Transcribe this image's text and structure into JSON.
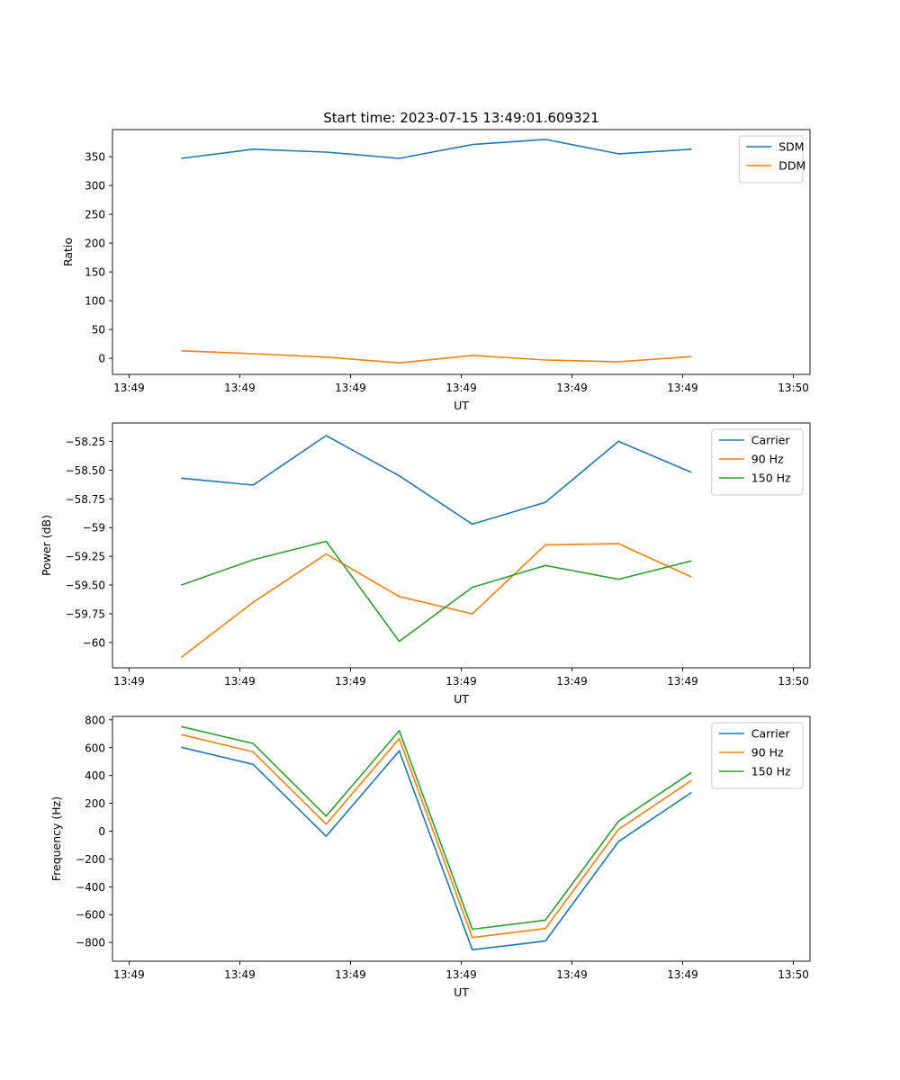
{
  "title": "Start time: 2023-07-15 13:49:01.609321",
  "colors": {
    "c0": "#1f77b4",
    "c1": "#ff7f0e",
    "c2": "#2ca02c"
  },
  "chart_data": [
    {
      "type": "line",
      "title": "Start time: 2023-07-15 13:49:01.609321",
      "xlabel": "UT",
      "ylabel": "Ratio",
      "x_tick_labels": [
        "13:49",
        "13:49",
        "13:49",
        "13:49",
        "13:49",
        "13:49",
        "13:50"
      ],
      "x_range": [
        0,
        6
      ],
      "x": [
        0.47,
        1.12,
        1.78,
        2.44,
        3.1,
        3.76,
        4.42,
        5.08
      ],
      "ylim": [
        -28,
        397
      ],
      "y_ticks": [
        0,
        50,
        100,
        150,
        200,
        250,
        300,
        350
      ],
      "legend": "top-right",
      "series": [
        {
          "name": "SDM",
          "color": "#1f77b4",
          "values": [
            347,
            363,
            358,
            347,
            371,
            380,
            355,
            363
          ]
        },
        {
          "name": "DDM",
          "color": "#ff7f0e",
          "values": [
            13,
            8,
            2,
            -8,
            5,
            -3,
            -6,
            3
          ]
        }
      ]
    },
    {
      "type": "line",
      "xlabel": "UT",
      "ylabel": "Power (dB)",
      "x_tick_labels": [
        "13:49",
        "13:49",
        "13:49",
        "13:49",
        "13:49",
        "13:49",
        "13:50"
      ],
      "x_range": [
        0,
        6
      ],
      "x": [
        0.47,
        1.12,
        1.78,
        2.44,
        3.1,
        3.76,
        4.42,
        5.08
      ],
      "ylim": [
        -60.22,
        -58.09
      ],
      "y_ticks": [
        -60.0,
        -59.75,
        -59.5,
        -59.25,
        -59.0,
        -58.75,
        -58.5,
        -58.25
      ],
      "legend": "top-right",
      "series": [
        {
          "name": "Carrier",
          "color": "#1f77b4",
          "values": [
            -58.57,
            -58.63,
            -58.2,
            -58.55,
            -58.97,
            -58.78,
            -58.25,
            -58.52
          ]
        },
        {
          "name": "90 Hz",
          "color": "#ff7f0e",
          "values": [
            -60.13,
            -59.65,
            -59.23,
            -59.6,
            -59.75,
            -59.15,
            -59.14,
            -59.43
          ]
        },
        {
          "name": "150 Hz",
          "color": "#2ca02c",
          "values": [
            -59.5,
            -59.28,
            -59.12,
            -59.99,
            -59.52,
            -59.33,
            -59.45,
            -59.29
          ]
        }
      ]
    },
    {
      "type": "line",
      "xlabel": "UT",
      "ylabel": "Frequency (Hz)",
      "x_tick_labels": [
        "13:49",
        "13:49",
        "13:49",
        "13:49",
        "13:49",
        "13:49",
        "13:50"
      ],
      "x_range": [
        0,
        6
      ],
      "x": [
        0.47,
        1.12,
        1.78,
        2.44,
        3.1,
        3.76,
        4.42,
        5.08
      ],
      "ylim": [
        -935,
        825
      ],
      "y_ticks": [
        -800,
        -600,
        -400,
        -200,
        0,
        200,
        400,
        600,
        800
      ],
      "legend": "top-right",
      "series": [
        {
          "name": "Carrier",
          "color": "#1f77b4",
          "values": [
            603,
            480,
            -37,
            577,
            -853,
            -790,
            -75,
            278
          ]
        },
        {
          "name": "90 Hz",
          "color": "#ff7f0e",
          "values": [
            694,
            570,
            50,
            665,
            -765,
            -700,
            12,
            365
          ]
        },
        {
          "name": "150 Hz",
          "color": "#2ca02c",
          "values": [
            752,
            630,
            108,
            722,
            -705,
            -640,
            72,
            422
          ]
        }
      ]
    }
  ]
}
